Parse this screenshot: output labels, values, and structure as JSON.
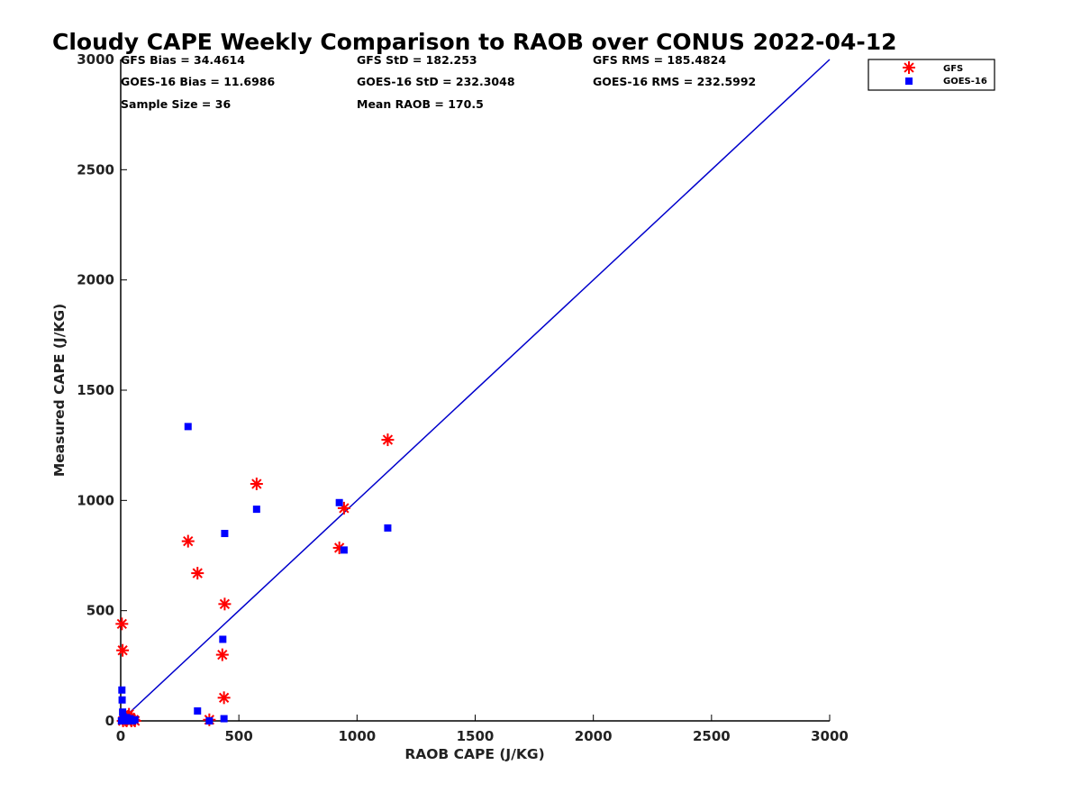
{
  "chart_data": {
    "type": "scatter",
    "title": "Cloudy CAPE Weekly Comparison to RAOB over CONUS 2022-04-12",
    "xlabel": "RAOB CAPE (J/KG)",
    "ylabel": "Measured CAPE (J/KG)",
    "xlim": [
      0,
      3000
    ],
    "ylim": [
      0,
      3000
    ],
    "xticks": [
      "0",
      "500",
      "1000",
      "1500",
      "2000",
      "2500",
      "3000"
    ],
    "yticks": [
      "0",
      "500",
      "1000",
      "1500",
      "2000",
      "2500",
      "3000"
    ],
    "grid": false,
    "legend_position": "top-right",
    "stats": {
      "gfs_bias": "GFS Bias = 34.4614",
      "gfs_std": "GFS StD = 182.253",
      "gfs_rms": "GFS RMS = 185.4824",
      "goes_bias": "GOES-16 Bias = 11.6986",
      "goes_std": "GOES-16 StD = 232.3048",
      "goes_rms": "GOES-16 RMS = 232.5992",
      "sample_size": "Sample Size = 36",
      "mean_raob": "Mean RAOB = 170.5"
    },
    "reference_line": {
      "x": [
        0,
        3000
      ],
      "y": [
        0,
        3000
      ],
      "color": "#0000cc"
    },
    "series": [
      {
        "name": "GFS",
        "marker": "asterisk",
        "color": "#ff0000",
        "x": [
          5,
          8,
          10,
          15,
          20,
          25,
          30,
          35,
          40,
          45,
          55,
          60,
          285,
          325,
          375,
          430,
          437,
          440,
          575,
          925,
          945,
          1130
        ],
        "y": [
          440,
          320,
          0,
          10,
          5,
          0,
          20,
          30,
          15,
          0,
          5,
          0,
          815,
          670,
          5,
          300,
          105,
          530,
          1075,
          785,
          965,
          1275
        ]
      },
      {
        "name": "GOES-16",
        "marker": "square",
        "color": "#0000ff",
        "x": [
          3,
          5,
          6,
          8,
          10,
          12,
          15,
          20,
          25,
          30,
          40,
          50,
          60,
          285,
          325,
          375,
          432,
          437,
          440,
          575,
          925,
          945,
          1130
        ],
        "y": [
          0,
          140,
          95,
          40,
          20,
          10,
          0,
          5,
          15,
          0,
          10,
          0,
          5,
          1335,
          45,
          0,
          370,
          10,
          850,
          960,
          990,
          775,
          875
        ]
      }
    ]
  }
}
